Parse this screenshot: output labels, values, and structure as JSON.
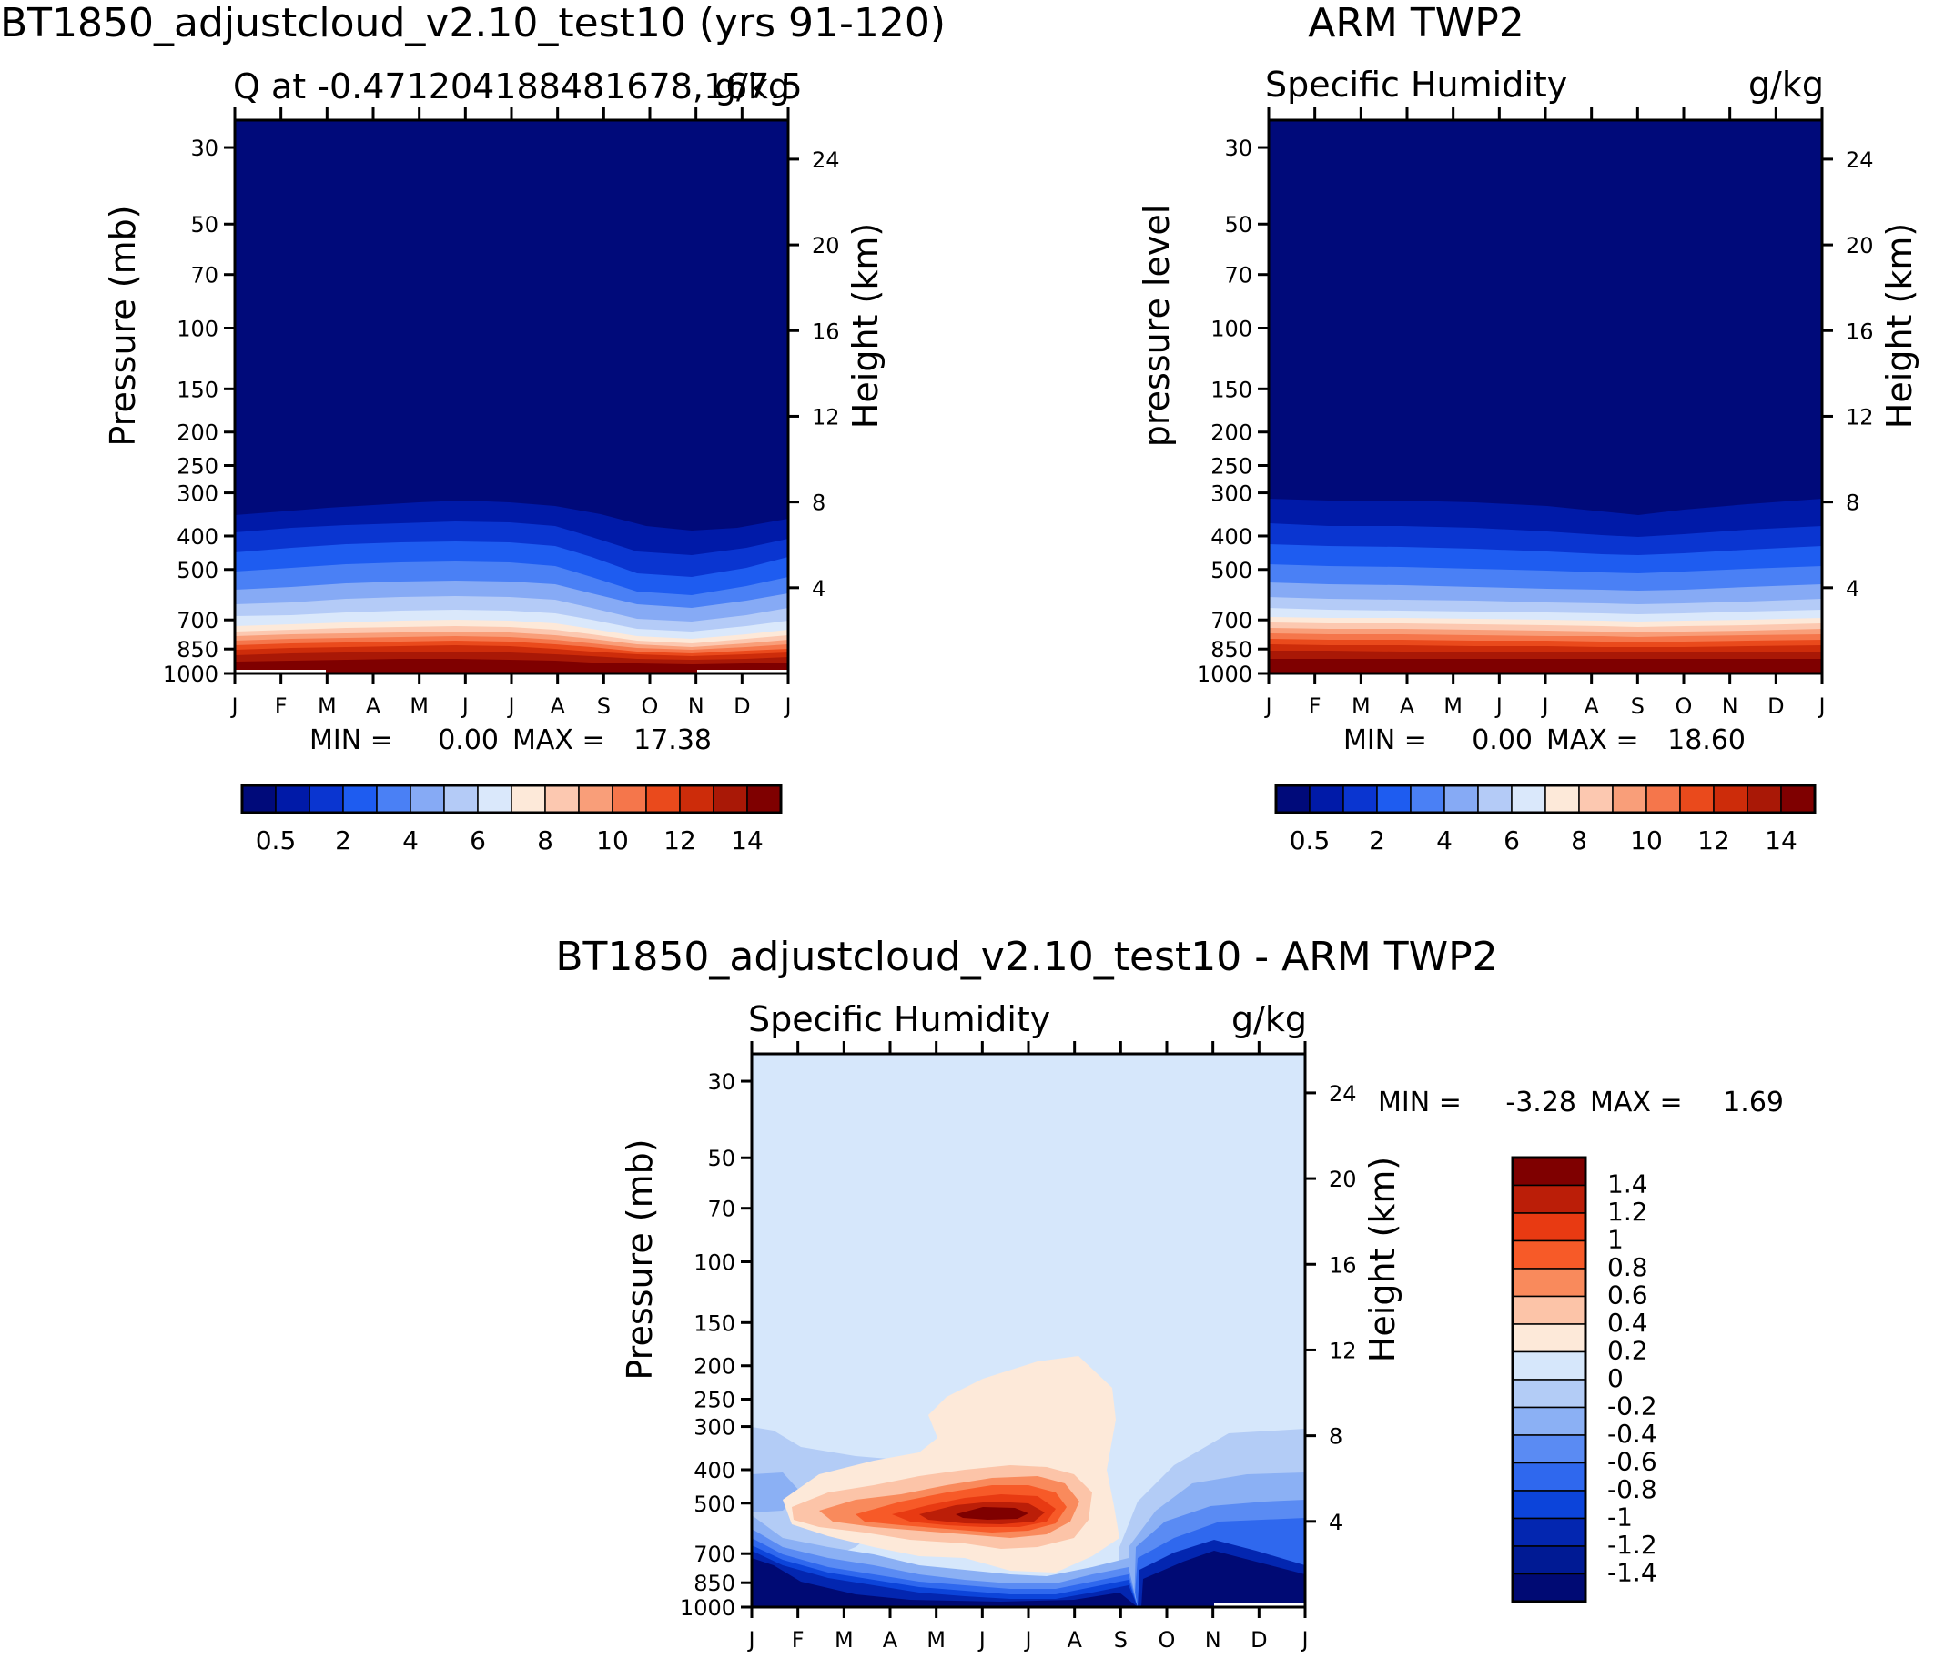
{
  "chart_data": [
    {
      "type": "contour",
      "title": "BT1850_adjustcloud_v2.10_test10 (yrs 91-120)",
      "subtitle_left": "Q at -0.471204188481678,167.5",
      "subtitle_right": "g/kg",
      "ylabel_left": "Pressure (mb)",
      "ylabel_right": "Height (km)",
      "months": [
        "J",
        "F",
        "M",
        "A",
        "M",
        "J",
        "J",
        "A",
        "S",
        "O",
        "N",
        "D",
        "J"
      ],
      "pressure_ticks": [
        "30",
        "50",
        "70",
        "100",
        "150",
        "200",
        "250",
        "300",
        "400",
        "500",
        "700",
        "850",
        "1000"
      ],
      "height_ticks": [
        "24",
        "20",
        "16",
        "12",
        "8",
        "4"
      ],
      "min_label": "MIN =",
      "min_value": "0.00",
      "max_label": "MAX =",
      "max_value": "17.38",
      "colorbar_labels": [
        "0.5",
        "2",
        "4",
        "6",
        "8",
        "10",
        "12",
        "14"
      ],
      "levels": [
        0.5,
        1,
        2,
        3,
        4,
        5,
        6,
        7,
        8,
        9,
        10,
        11,
        12,
        13,
        14
      ],
      "colors": [
        "#000a7a",
        "#001aa8",
        "#0a35d0",
        "#1e5cf0",
        "#4a80f5",
        "#86aaf5",
        "#b4cbf7",
        "#dae8fb",
        "#fde9d9",
        "#fcc8b0",
        "#f99e79",
        "#f5764b",
        "#ea4a1c",
        "#cd2c0a",
        "#a91806",
        "#7f0000"
      ]
    },
    {
      "type": "contour",
      "title": "ARM TWP2",
      "subtitle_left": "Specific Humidity",
      "subtitle_right": "g/kg",
      "ylabel_left": "pressure level",
      "ylabel_right": "Height (km)",
      "months": [
        "J",
        "F",
        "M",
        "A",
        "M",
        "J",
        "J",
        "A",
        "S",
        "O",
        "N",
        "D",
        "J"
      ],
      "pressure_ticks": [
        "30",
        "50",
        "70",
        "100",
        "150",
        "200",
        "250",
        "300",
        "400",
        "500",
        "700",
        "850",
        "1000"
      ],
      "height_ticks": [
        "24",
        "20",
        "16",
        "12",
        "8",
        "4"
      ],
      "min_label": "MIN =",
      "min_value": "0.00",
      "max_label": "MAX =",
      "max_value": "18.60",
      "colorbar_labels": [
        "0.5",
        "2",
        "4",
        "6",
        "8",
        "10",
        "12",
        "14"
      ]
    },
    {
      "type": "contour",
      "title": "BT1850_adjustcloud_v2.10_test10 - ARM TWP2",
      "subtitle_left": "Specific Humidity",
      "subtitle_right": "g/kg",
      "ylabel_left": "Pressure (mb)",
      "ylabel_right": "Height (km)",
      "months": [
        "J",
        "F",
        "M",
        "A",
        "M",
        "J",
        "J",
        "A",
        "S",
        "O",
        "N",
        "D",
        "J"
      ],
      "pressure_ticks": [
        "30",
        "50",
        "70",
        "100",
        "150",
        "200",
        "250",
        "300",
        "400",
        "500",
        "700",
        "850",
        "1000"
      ],
      "height_ticks": [
        "24",
        "20",
        "16",
        "12",
        "8",
        "4"
      ],
      "min_label": "MIN =",
      "min_value": "-3.28",
      "max_label": "MAX =",
      "max_value": "1.69",
      "colorbar_labels": [
        "1.4",
        "1.2",
        "1",
        "0.8",
        "0.6",
        "0.4",
        "0.2",
        "0",
        "-0.2",
        "-0.4",
        "-0.6",
        "-0.8",
        "-1",
        "-1.2",
        "-1.4"
      ],
      "colors": [
        "#7f0000",
        "#bb1e08",
        "#e83a12",
        "#f75a28",
        "#f98a5c",
        "#fcc4a8",
        "#fde9d9",
        "#d6e7fb",
        "#b3ccf6",
        "#8bb0f4",
        "#5a8bf3",
        "#2f68ee",
        "#0c44da",
        "#0326b0",
        "#001a94",
        "#000a74"
      ]
    }
  ]
}
